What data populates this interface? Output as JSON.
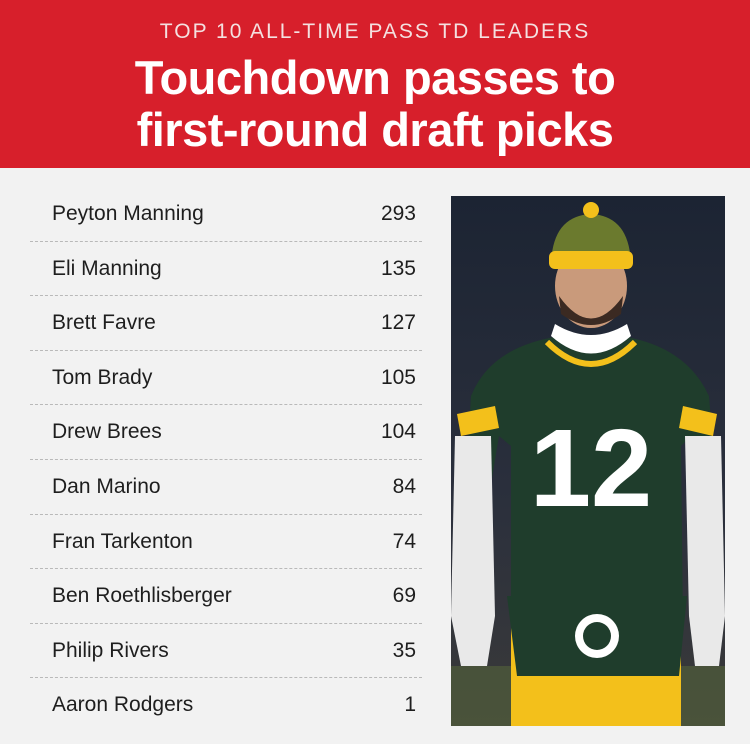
{
  "header": {
    "subtitle": "TOP 10 ALL-TIME PASS TD LEADERS",
    "title_line1": "Touchdown passes to",
    "title_line2": "first-round draft picks"
  },
  "colors": {
    "header_bg": "#d71f2b",
    "background": "#f2f2f2",
    "jersey_green": "#1f3d2c",
    "jersey_gold": "#f3c01b"
  },
  "photo": {
    "jersey_number": "12"
  },
  "chart_data": {
    "type": "table",
    "title": "Touchdown passes to first-round draft picks",
    "subtitle": "TOP 10 ALL-TIME PASS TD LEADERS",
    "categories": [
      "Peyton Manning",
      "Eli Manning",
      "Brett Favre",
      "Tom Brady",
      "Drew Brees",
      "Dan Marino",
      "Fran Tarkenton",
      "Ben Roethlisberger",
      "Philip Rivers",
      "Aaron Rodgers"
    ],
    "values": [
      293,
      135,
      127,
      105,
      104,
      84,
      74,
      69,
      35,
      1
    ]
  }
}
